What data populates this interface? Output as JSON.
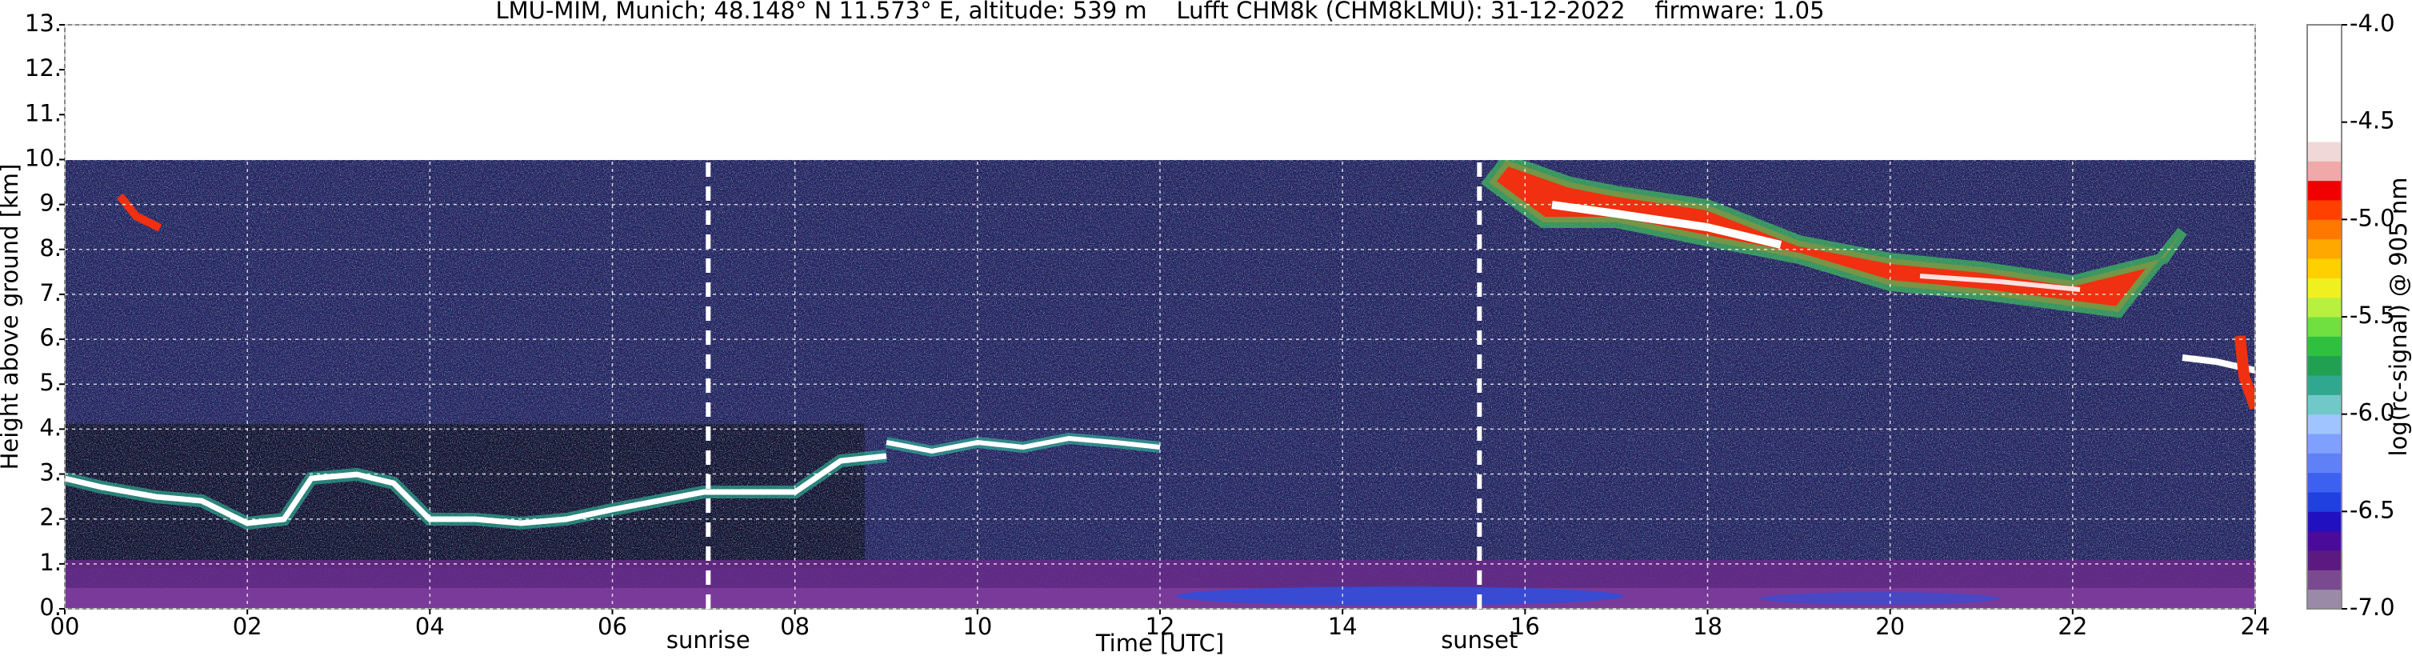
{
  "chart_data": {
    "type": "heatmap",
    "title": "LMU-MIM, Munich; 48.148° N 11.573° E, altitude: 539 m    Lufft CHM8k (CHM8kLMU): 31-12-2022    firmware: 1.05",
    "x_label": "Time [UTC]",
    "y_label": "Height above ground [km]",
    "xlim": [
      0,
      24
    ],
    "ylim": [
      0,
      13
    ],
    "xticks": [
      {
        "value": 0,
        "label": "00"
      },
      {
        "value": 2,
        "label": "02"
      },
      {
        "value": 4,
        "label": "04"
      },
      {
        "value": 6,
        "label": "06"
      },
      {
        "value": 8,
        "label": "08"
      },
      10,
      12,
      14,
      16,
      18,
      20,
      22,
      24
    ],
    "yticks": [
      {
        "value": 0,
        "label": "0."
      },
      {
        "value": 1,
        "label": "1."
      },
      {
        "value": 2,
        "label": "2."
      },
      {
        "value": 3,
        "label": "3."
      },
      {
        "value": 4,
        "label": "4."
      },
      {
        "value": 5,
        "label": "5."
      },
      {
        "value": 6,
        "label": "6."
      },
      {
        "value": 7,
        "label": "7."
      },
      {
        "value": 8,
        "label": "8."
      },
      {
        "value": 9,
        "label": "9."
      },
      {
        "value": 10,
        "label": "10."
      },
      {
        "value": 11,
        "label": "11."
      },
      {
        "value": 12,
        "label": "12."
      },
      {
        "value": 13,
        "label": "13."
      }
    ],
    "grid": true,
    "annotations": [
      {
        "text": "sunrise",
        "x": 7.05,
        "y": [
          0,
          10
        ]
      },
      {
        "text": "sunset",
        "x": 15.5,
        "y": [
          0,
          10
        ]
      }
    ],
    "colorbar": {
      "label": "log(rc-signal) @ 905 nm",
      "clim": [
        -7,
        -4
      ],
      "ticks": [
        {
          "value": -7,
          "label": "-7.0"
        },
        {
          "value": -6.5,
          "label": "-6.5"
        },
        {
          "value": -6,
          "label": "-6.0"
        },
        {
          "value": -5.5,
          "label": "-5.5"
        },
        {
          "value": -5,
          "label": "-5.0"
        },
        {
          "value": -4.5,
          "label": "-4.5"
        },
        {
          "value": -4,
          "label": "-4.0"
        }
      ],
      "colors": [
        "#9a8aa8",
        "#7a4a90",
        "#5c1a80",
        "#4a0a9a",
        "#2010c0",
        "#2040e0",
        "#3c60f0",
        "#6080f8",
        "#80a0ff",
        "#a0c4ff",
        "#70c8c8",
        "#30a890",
        "#20a050",
        "#30c040",
        "#70e040",
        "#b8f040",
        "#f0f020",
        "#ffd000",
        "#ffa800",
        "#ff7800",
        "#ff4000",
        "#f00000",
        "#f0a8a8",
        "#f0d8d8",
        "#ffffff",
        "#ffffff",
        "#ffffff",
        "#ffffff",
        "#ffffff",
        "#ffffff"
      ]
    }
  }
}
